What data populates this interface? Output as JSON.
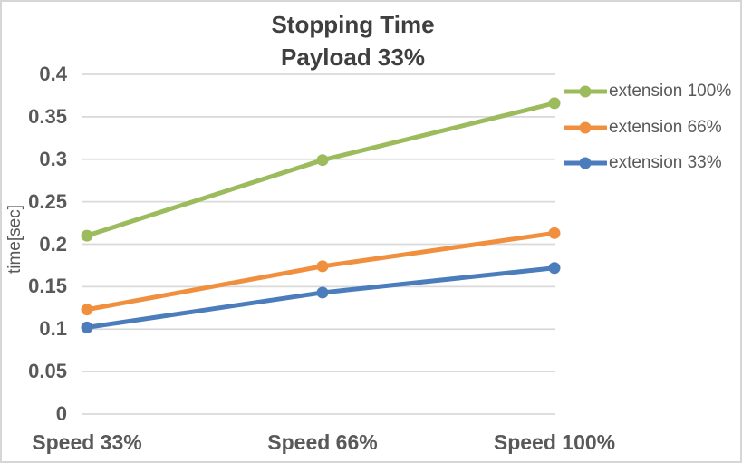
{
  "chart_data": {
    "type": "line",
    "title": "Stopping Time",
    "subtitle": "Payload 33%",
    "categories": [
      "Speed 33%",
      "Speed 66%",
      "Speed 100%"
    ],
    "series": [
      {
        "name": "extension 100%",
        "color": "#9CBB5D",
        "values": [
          0.21,
          0.299,
          0.366
        ]
      },
      {
        "name": "extension 66%",
        "color": "#F0903F",
        "values": [
          0.123,
          0.174,
          0.213
        ]
      },
      {
        "name": "extension 33%",
        "color": "#4B7CBC",
        "values": [
          0.102,
          0.143,
          0.172
        ]
      }
    ],
    "xlabel": "",
    "ylabel": "time[sec]",
    "ylim": [
      0,
      0.4
    ],
    "ytick_step": 0.05,
    "yticks": [
      "0",
      "0.05",
      "0.1",
      "0.15",
      "0.2",
      "0.25",
      "0.3",
      "0.35",
      "0.4"
    ],
    "grid": true,
    "legend_position": "right",
    "colors": {
      "gridline": "#D9D9D9",
      "axis_text": "#595959",
      "title_text": "#3F3F3F",
      "chart_border": "#D6D6D6",
      "background": "#FFFFFF"
    }
  }
}
